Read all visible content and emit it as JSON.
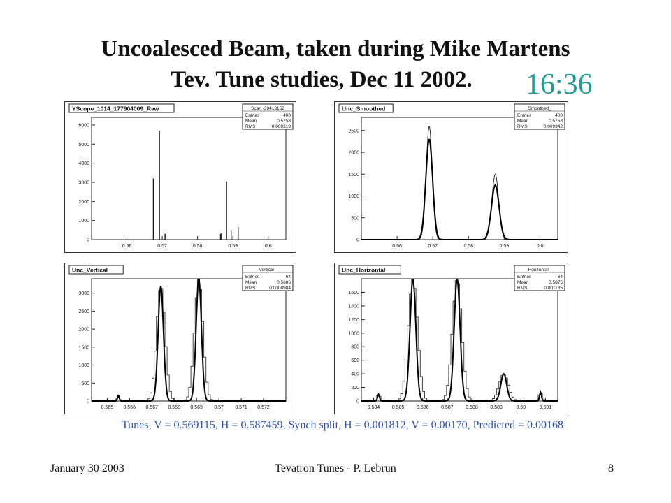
{
  "slide": {
    "title_line1": "Uncoalesced Beam, taken during Mike Martens",
    "title_line2": "Tev. Tune studies, Dec 11 2002.",
    "clock": "16:36",
    "tunes_line": "Tunes, V = 0.569115, H = 0.587459, Synch split, H = 0.001812, V = 0.00170,  Predicted = 0.00168",
    "footer_left": "January 30  2003",
    "footer_center": "Tevatron Tunes - P. Lebrun",
    "footer_right": "8"
  },
  "colors": {
    "accent": "#1f9a94",
    "tunes_text": "#2a50b0"
  },
  "chart_data": [
    {
      "type": "histogram",
      "title": "YScope_1014_177904009_Raw",
      "stats": {
        "name": "Scan -39413152",
        "entries": "400",
        "mean": "0.5758",
        "rms": "0.009319"
      },
      "xlim": [
        0.55,
        0.605
      ],
      "ylim": [
        0,
        6400
      ],
      "xticks": [
        0.56,
        0.57,
        0.58,
        0.59,
        0.6
      ],
      "xticklabels": [
        "0.56",
        "0.57",
        "0.58",
        "0.59",
        "0.6"
      ],
      "yticks": [
        0,
        1000,
        2000,
        3000,
        4000,
        5000,
        6000
      ],
      "yticklabels": [
        "0",
        "1000",
        "2000",
        "3000",
        "4000",
        "5000",
        "6000"
      ],
      "spikes": [
        [
          0.5675,
          3200
        ],
        [
          0.5692,
          5700
        ],
        [
          0.5708,
          300
        ],
        [
          0.5865,
          300
        ],
        [
          0.5868,
          350
        ],
        [
          0.5882,
          3050
        ],
        [
          0.5895,
          500
        ],
        [
          0.5915,
          650
        ]
      ]
    },
    {
      "type": "histogram",
      "title": "Unc_Smoothed",
      "stats": {
        "name": "Smoothed_",
        "entries": "400",
        "mean": "0.5758",
        "rms": "0.009342"
      },
      "xlim": [
        0.55,
        0.605
      ],
      "ylim": [
        0,
        2800
      ],
      "xticks": [
        0.56,
        0.57,
        0.58,
        0.59,
        0.6
      ],
      "xticklabels": [
        "0.56",
        "0.57",
        "0.58",
        "0.59",
        "0.6"
      ],
      "yticks": [
        0,
        500,
        1000,
        1500,
        2000,
        2500
      ],
      "yticklabels": [
        "0",
        "500",
        "1000",
        "1500",
        "2000",
        "2500"
      ],
      "peaks": [
        {
          "center": 0.569,
          "height": 2600,
          "sigma": 0.00085,
          "fit_height": 2300
        },
        {
          "center": 0.5875,
          "height": 1500,
          "sigma": 0.00095,
          "fit_height": 1250
        }
      ]
    },
    {
      "type": "histogram",
      "title": "Unc_Vertical",
      "stats": {
        "name": "Vertical_",
        "entries": "64",
        "mean": "0.5686",
        "rms": "0.0008984"
      },
      "xlim": [
        0.5643,
        0.573
      ],
      "ylim": [
        0,
        3400
      ],
      "xticks": [
        0.565,
        0.566,
        0.567,
        0.568,
        0.569,
        0.57,
        0.571,
        0.572
      ],
      "xticklabels": [
        "0.565",
        "0.566",
        "0.567",
        "0.568",
        "0.569",
        "0.57",
        "0.571",
        "0.572"
      ],
      "yticks": [
        0,
        500,
        1000,
        1500,
        2000,
        2500,
        3000
      ],
      "yticklabels": [
        "0",
        "500",
        "1000",
        "1500",
        "2000",
        "2500",
        "3000"
      ],
      "peaks": [
        {
          "center": 0.5674,
          "height": 3200,
          "sigma": 0.00012
        },
        {
          "center": 0.5691,
          "height": 3400,
          "sigma": 0.00012
        },
        {
          "center": 0.5655,
          "height": 150,
          "sigma": 4e-05
        }
      ]
    },
    {
      "type": "histogram",
      "title": "Unc_Horizontal",
      "stats": {
        "name": "Horizontal_",
        "entries": "64",
        "mean": "0.5875",
        "rms": "0.001185"
      },
      "xlim": [
        0.5835,
        0.5915
      ],
      "ylim": [
        0,
        1800
      ],
      "xticks": [
        0.584,
        0.585,
        0.586,
        0.587,
        0.588,
        0.589,
        0.59,
        0.591
      ],
      "xticklabels": [
        "0.584",
        "0.585",
        "0.586",
        "0.587",
        "0.588",
        "0.589",
        "0.59",
        "0.591"
      ],
      "yticks": [
        0,
        200,
        400,
        600,
        800,
        1000,
        1200,
        1400,
        1600
      ],
      "yticklabels": [
        "0",
        "200",
        "400",
        "600",
        "800",
        "1000",
        "1200",
        "1400",
        "1600"
      ],
      "peaks": [
        {
          "center": 0.5856,
          "height": 1800,
          "sigma": 0.00012
        },
        {
          "center": 0.5874,
          "height": 1800,
          "sigma": 0.00012
        },
        {
          "center": 0.5893,
          "height": 400,
          "sigma": 0.00012
        },
        {
          "center": 0.5842,
          "height": 100,
          "sigma": 4e-05
        },
        {
          "center": 0.5908,
          "height": 130,
          "sigma": 4e-05
        }
      ]
    }
  ]
}
